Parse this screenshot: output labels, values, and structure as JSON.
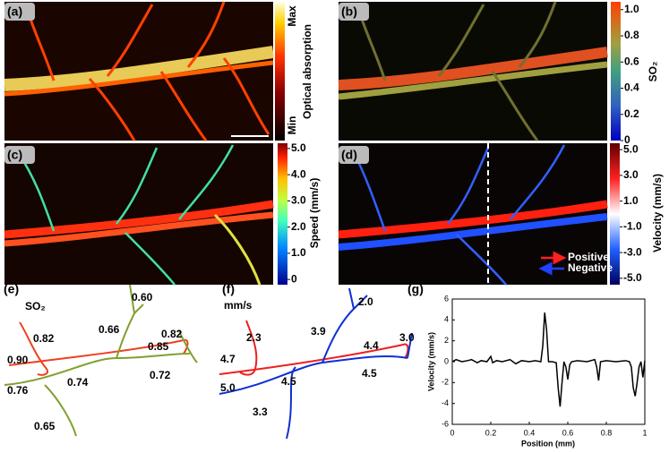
{
  "panels": {
    "a": {
      "label": "(a)",
      "colorbar": {
        "max": "Max",
        "min": "Min",
        "title": "Optical absorption"
      }
    },
    "b": {
      "label": "(b)",
      "colorbar": {
        "title": "SO₂",
        "clim": [
          0,
          1.06
        ],
        "ticks": [
          {
            "value": 1,
            "label": "1.0"
          },
          0.8,
          0.6,
          0.4,
          0.2,
          0
        ]
      }
    },
    "c": {
      "label": "(c)",
      "colorbar": {
        "title": "Speed (mm/s)",
        "clim": [
          -0.2,
          5.2
        ],
        "ticks": [
          {
            "value": 5,
            "label": "5.0"
          },
          {
            "value": 4,
            "label": "4.0"
          },
          {
            "value": 3,
            "label": "3.0"
          },
          {
            "value": 2,
            "label": "2.0"
          },
          {
            "value": 1,
            "label": "1.0"
          },
          0
        ]
      }
    },
    "d": {
      "label": "(d)",
      "colorbar": {
        "title": "Velocity  (mm/s)",
        "clim": [
          -5.5,
          5.5
        ],
        "ticks": [
          {
            "value": 5,
            "label": "5.0"
          },
          {
            "value": 3,
            "label": "3.0"
          },
          {
            "value": 1,
            "label": "1.0"
          },
          {
            "value": -1,
            "label": "-1.0"
          },
          {
            "value": -3,
            "label": "-3.0"
          },
          {
            "value": -5,
            "label": "-5.0"
          }
        ]
      },
      "legend": [
        "Positive",
        "Negative"
      ]
    },
    "e": {
      "label": "(e)",
      "unit": "SO₂",
      "annotations": [
        "0.82",
        "0.66",
        "0.60",
        "0.85",
        "0.82",
        "0.90",
        "0.76",
        "0.74",
        "0.72",
        "0.65"
      ]
    },
    "f": {
      "label": "(f)",
      "unit": "mm/s",
      "annotations": [
        "2.0",
        "2.3",
        "3.9",
        "4.4",
        "3.0",
        "4.7",
        "4.5",
        "5.0",
        "4.5",
        "3.3"
      ]
    }
  },
  "chart_data": {
    "type": "line",
    "label": "(g)",
    "xlabel": "Position (mm)",
    "ylabel": "Velocity (mm/s)",
    "color": "#000000",
    "x": [
      0,
      0.02,
      0.05,
      0.08,
      0.1,
      0.13,
      0.15,
      0.18,
      0.2,
      0.21,
      0.23,
      0.26,
      0.3,
      0.33,
      0.36,
      0.4,
      0.43,
      0.46,
      0.47,
      0.48,
      0.49,
      0.5,
      0.52,
      0.54,
      0.55,
      0.56,
      0.57,
      0.58,
      0.59,
      0.6,
      0.61,
      0.62,
      0.65,
      0.7,
      0.74,
      0.75,
      0.76,
      0.77,
      0.8,
      0.85,
      0.9,
      0.92,
      0.93,
      0.94,
      0.95,
      0.96,
      0.97,
      0.98,
      0.99,
      1.0
    ],
    "values": [
      0,
      0.2,
      0,
      0.1,
      0.2,
      -0.1,
      0.1,
      0,
      0.5,
      -0.1,
      0.1,
      0,
      0.2,
      -0.2,
      0.1,
      0,
      0.1,
      0,
      1.5,
      4.7,
      3,
      0,
      0,
      -0.1,
      -2.5,
      -4.3,
      -2,
      0,
      -0.5,
      -1.7,
      -0.3,
      0,
      0.1,
      0,
      0.2,
      -0.5,
      -1.8,
      0,
      0.1,
      0,
      0.1,
      0,
      -0.5,
      -2.5,
      -3.3,
      -2,
      -0.5,
      0,
      -1.5,
      0.1
    ],
    "xlim": [
      0,
      1
    ],
    "ylim": [
      -6,
      6
    ],
    "xticks": [
      0,
      0.2,
      0.4,
      0.6,
      0.8,
      1
    ],
    "yticks": [
      -6,
      -4,
      -2,
      0,
      2,
      4,
      6
    ]
  }
}
